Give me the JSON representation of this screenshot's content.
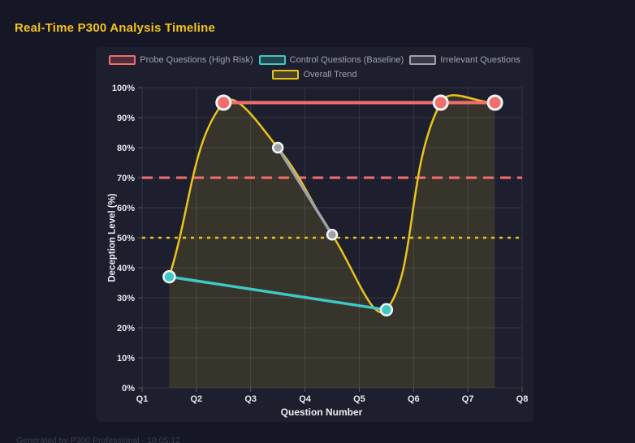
{
  "page": {
    "title": "Real-Time P300 Analysis Timeline",
    "footer": "Generated by P300 Professional - 10:05:12"
  },
  "colors": {
    "background": "#161726",
    "panel": "#1d1f2e",
    "title": "#f2c31c",
    "probe_red": "#f26d6d",
    "control_teal": "#3fc8c4",
    "irrelevant_gray": "#a0a0a8",
    "trend_yellow": "#e9c31c",
    "point_border": "#f3f4f6",
    "tick_text": "#e6e8ef",
    "legend_text": "#9fa2ad"
  },
  "chart_data": {
    "type": "line",
    "title": "Real-Time P300 Analysis Timeline",
    "xlabel": "Question Number",
    "ylabel": "Deception Level (%)",
    "x_tick_labels": [
      "Q1",
      "Q2",
      "Q3",
      "Q4",
      "Q5",
      "Q6",
      "Q7",
      "Q8"
    ],
    "x_range": [
      1,
      8
    ],
    "ylim": [
      0,
      100
    ],
    "y_tick_step": 10,
    "y_tick_suffix": "%",
    "grid": true,
    "legend_position": "top",
    "series": [
      {
        "name": "Probe Questions (High Risk)",
        "color": "#f26d6d",
        "x": [
          2.5,
          6.5,
          7.5
        ],
        "values": [
          95,
          95,
          95
        ],
        "line_width": 4,
        "point_radius": 8.5,
        "point_stroke": 3,
        "smooth": false,
        "fill": false
      },
      {
        "name": "Control Questions (Baseline)",
        "color": "#3fc8c4",
        "x": [
          1.5,
          5.5
        ],
        "values": [
          37,
          26
        ],
        "line_width": 3.5,
        "point_radius": 7,
        "point_stroke": 2.5,
        "smooth": false,
        "fill": false
      },
      {
        "name": "Irrelevant Questions",
        "color": "#a0a0a8",
        "x": [
          3.5,
          4.5
        ],
        "values": [
          80,
          51
        ],
        "line_width": 3.5,
        "point_radius": 6,
        "point_stroke": 2.5,
        "smooth": false,
        "fill": false
      },
      {
        "name": "Overall Trend",
        "color": "#e9c31c",
        "x": [
          1.5,
          2.5,
          3.5,
          4.5,
          5.5,
          6.5,
          7.5
        ],
        "values": [
          37,
          95,
          80,
          51,
          26,
          95,
          95
        ],
        "line_width": 2.5,
        "point_radius": 0,
        "point_stroke": 0,
        "smooth": true,
        "fill": true,
        "fill_opacity": 0.13
      }
    ],
    "thresholds": [
      {
        "name": "high-risk-threshold",
        "value": 70,
        "color": "#f26d6d",
        "style": "dashed"
      },
      {
        "name": "baseline-threshold",
        "value": 50,
        "color": "#e9c31c",
        "style": "dotted"
      }
    ]
  }
}
